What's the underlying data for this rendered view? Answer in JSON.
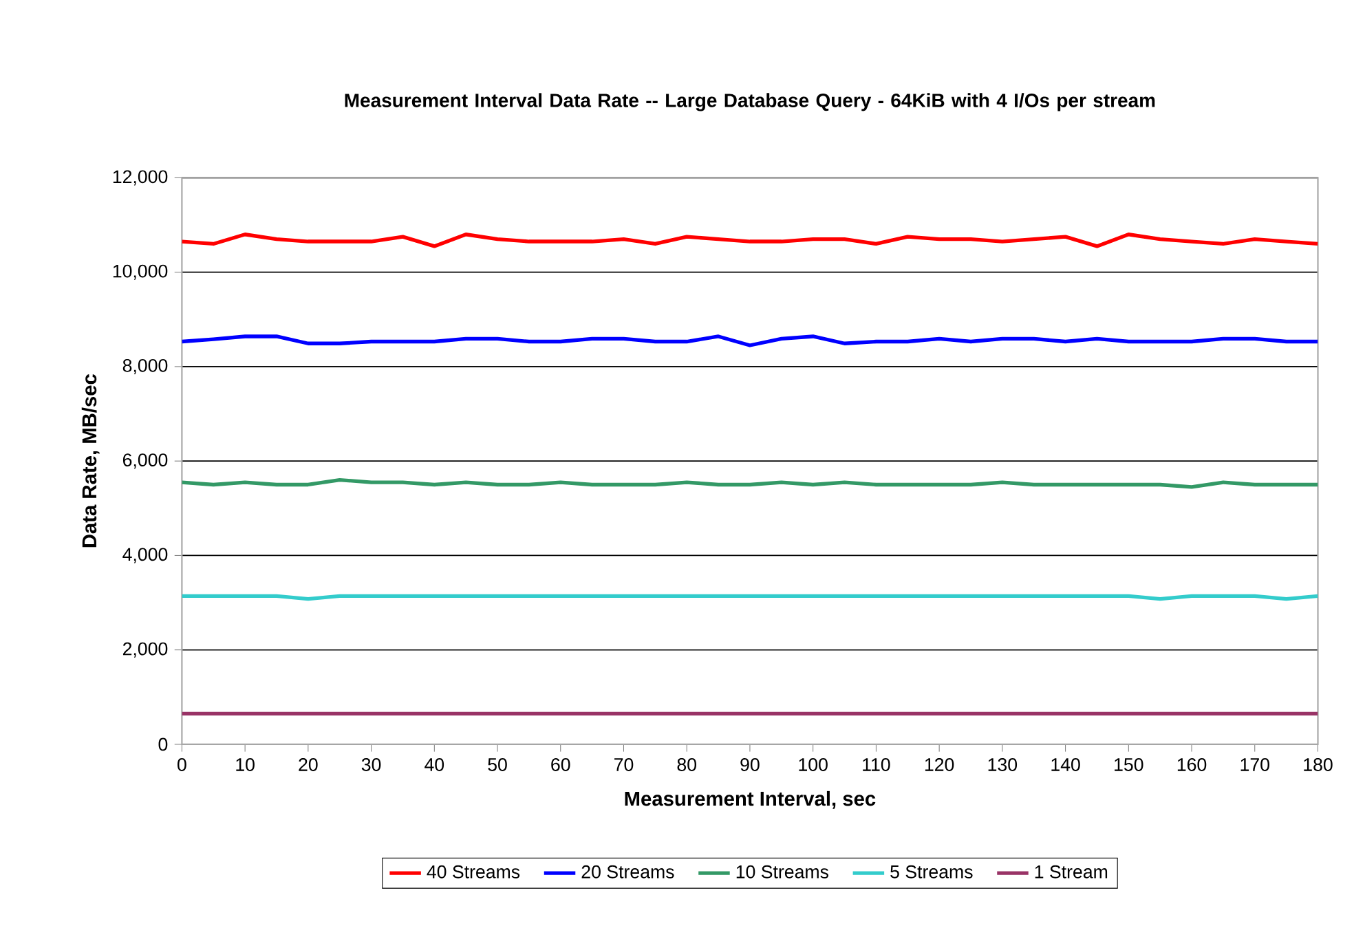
{
  "chart_data": {
    "type": "line",
    "title": "Measurement Interval Data Rate -- Large Database Query - 64KiB with 4 I/Os per stream",
    "xlabel": "Measurement Interval, sec",
    "ylabel": "Data Rate, MB/sec",
    "x": [
      0,
      5,
      10,
      15,
      20,
      25,
      30,
      35,
      40,
      45,
      50,
      55,
      60,
      65,
      70,
      75,
      80,
      85,
      90,
      95,
      100,
      105,
      110,
      115,
      120,
      125,
      130,
      135,
      140,
      145,
      150,
      155,
      160,
      165,
      170,
      175,
      180
    ],
    "xlim": [
      0,
      180
    ],
    "xticks": [
      0,
      10,
      20,
      30,
      40,
      50,
      60,
      70,
      80,
      90,
      100,
      110,
      120,
      130,
      140,
      150,
      160,
      170,
      180
    ],
    "ylim": [
      0,
      12000
    ],
    "yticks": [
      0,
      {
        "value": 2000,
        "label": "2,000"
      },
      {
        "value": 4000,
        "label": "4,000"
      },
      {
        "value": 6000,
        "label": "6,000"
      },
      {
        "value": 8000,
        "label": "8,000"
      },
      {
        "value": 10000,
        "label": "10,000"
      },
      {
        "value": 12000,
        "label": "12,000"
      }
    ],
    "grid": "y",
    "legend": "bottom",
    "marker": "none",
    "line_style": "solid",
    "series": [
      {
        "name": "40 Streams",
        "color": "#ff0000",
        "values": [
          10650,
          10600,
          10800,
          10700,
          10650,
          10650,
          10650,
          10750,
          10550,
          10800,
          10700,
          10650,
          10650,
          10650,
          10700,
          10600,
          10750,
          10700,
          10650,
          10650,
          10700,
          10700,
          10600,
          10750,
          10700,
          10700,
          10650,
          10700,
          10750,
          10550,
          10800,
          10700,
          10650,
          10600,
          10700,
          10650,
          10600
        ]
      },
      {
        "name": "20 Streams",
        "color": "#0000ff",
        "values": [
          8530,
          8580,
          8640,
          8640,
          8490,
          8490,
          8530,
          8530,
          8530,
          8590,
          8590,
          8530,
          8530,
          8590,
          8590,
          8530,
          8530,
          8640,
          8450,
          8590,
          8640,
          8490,
          8530,
          8530,
          8590,
          8530,
          8590,
          8590,
          8530,
          8590,
          8530,
          8530,
          8530,
          8590,
          8590,
          8530,
          8530
        ]
      },
      {
        "name": "10 Streams",
        "color": "#339966",
        "values": [
          5550,
          5500,
          5550,
          5500,
          5500,
          5600,
          5550,
          5550,
          5500,
          5550,
          5500,
          5500,
          5550,
          5500,
          5500,
          5500,
          5550,
          5500,
          5500,
          5550,
          5500,
          5550,
          5500,
          5500,
          5500,
          5500,
          5550,
          5500,
          5500,
          5500,
          5500,
          5500,
          5450,
          5550,
          5500,
          5500,
          5500
        ]
      },
      {
        "name": "5 Streams",
        "color": "#33cccc",
        "values": [
          3140,
          3140,
          3140,
          3140,
          3080,
          3140,
          3140,
          3140,
          3140,
          3140,
          3140,
          3140,
          3140,
          3140,
          3140,
          3140,
          3140,
          3140,
          3140,
          3140,
          3140,
          3140,
          3140,
          3140,
          3140,
          3140,
          3140,
          3140,
          3140,
          3140,
          3140,
          3080,
          3140,
          3140,
          3140,
          3080,
          3140
        ]
      },
      {
        "name": "1 Stream",
        "color": "#993366",
        "values": [
          650,
          650,
          650,
          650,
          650,
          650,
          650,
          650,
          650,
          650,
          650,
          650,
          650,
          650,
          650,
          650,
          650,
          650,
          650,
          650,
          650,
          650,
          650,
          650,
          650,
          650,
          650,
          650,
          650,
          650,
          650,
          650,
          650,
          650,
          650,
          650,
          650
        ]
      }
    ]
  }
}
